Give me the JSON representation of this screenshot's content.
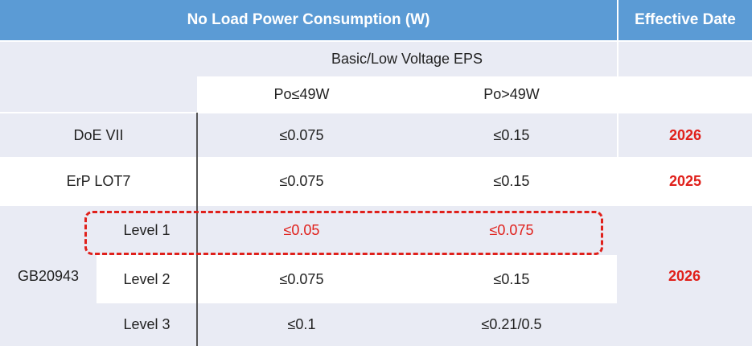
{
  "table": {
    "header": [
      "No Load Power Consumption (W)",
      "Effective Date"
    ],
    "subheader": "Basic/Low Voltage EPS",
    "columns": [
      "Po≤49W",
      "Po>49W"
    ],
    "rows": [
      {
        "label": "DoE VII",
        "values": [
          "≤0.075",
          "≤0.15"
        ],
        "date": "2026"
      },
      {
        "label": "ErP LOT7",
        "values": [
          "≤0.075",
          "≤0.15"
        ],
        "date": "2025"
      }
    ],
    "group": {
      "label": "GB20943",
      "date": "2026",
      "levels": [
        {
          "label": "Level 1",
          "values": [
            "≤0.05",
            "≤0.075"
          ]
        },
        {
          "label": "Level 2",
          "values": [
            "≤0.075",
            "≤0.15"
          ]
        },
        {
          "label": "Level 3",
          "values": [
            "≤0.1",
            "≤0.21/0.5"
          ]
        }
      ]
    }
  }
}
